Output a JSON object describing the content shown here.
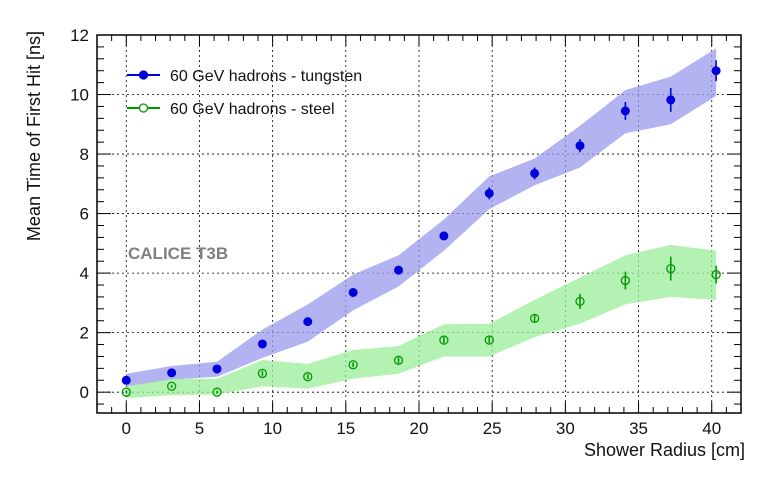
{
  "chart_data": {
    "type": "scatter",
    "xlabel": "Shower Radius [cm]",
    "ylabel": "Mean Time of First Hit [ns]",
    "xlim": [
      -2,
      42
    ],
    "ylim": [
      -0.7,
      12
    ],
    "xticks": [
      0,
      5,
      10,
      15,
      20,
      25,
      30,
      35,
      40
    ],
    "yticks": [
      0,
      2,
      4,
      6,
      8,
      10,
      12
    ],
    "grid": true,
    "legend_position": "top-left",
    "annotation": "CALICE T3B",
    "annotation_color": "#808080",
    "series": [
      {
        "name": "60 GeV hadrons - tungsten",
        "color": "#0000dd",
        "band_color": "#9999ee",
        "marker": "filled-circle",
        "x": [
          0,
          3.1,
          6.2,
          9.3,
          12.4,
          15.5,
          18.6,
          21.7,
          24.8,
          27.9,
          31.0,
          34.1,
          37.2,
          40.3
        ],
        "y": [
          0.4,
          0.65,
          0.78,
          1.62,
          2.37,
          3.35,
          4.1,
          5.25,
          6.68,
          7.35,
          8.28,
          9.45,
          9.82,
          10.8
        ],
        "yerr": [
          0.1,
          0.1,
          0.1,
          0.12,
          0.12,
          0.12,
          0.12,
          0.12,
          0.2,
          0.2,
          0.22,
          0.3,
          0.4,
          0.35
        ],
        "band_low": [
          0.2,
          0.42,
          0.52,
          1.15,
          1.7,
          2.75,
          3.55,
          4.75,
          6.15,
          6.95,
          7.55,
          8.7,
          9.0,
          9.95
        ],
        "band_high": [
          0.62,
          0.88,
          1.02,
          2.1,
          2.95,
          3.95,
          4.6,
          5.8,
          7.25,
          7.85,
          8.95,
          10.15,
          10.6,
          11.55
        ]
      },
      {
        "name": "60 GeV hadrons - steel",
        "color": "#009900",
        "band_color": "#99ee99",
        "marker": "open-circle",
        "x": [
          0,
          3.1,
          6.2,
          9.3,
          12.4,
          15.5,
          18.6,
          21.7,
          24.8,
          27.9,
          31.0,
          34.1,
          37.2,
          40.3
        ],
        "y": [
          0.0,
          0.2,
          0.0,
          0.63,
          0.52,
          0.92,
          1.07,
          1.75,
          1.75,
          2.48,
          3.05,
          3.75,
          4.15,
          3.95
        ],
        "yerr": [
          0.05,
          0.05,
          0.05,
          0.08,
          0.08,
          0.08,
          0.1,
          0.1,
          0.1,
          0.15,
          0.25,
          0.3,
          0.4,
          0.3
        ],
        "band_low": [
          -0.2,
          -0.1,
          -0.08,
          0.2,
          0.12,
          0.45,
          0.62,
          1.2,
          1.2,
          1.85,
          2.3,
          2.95,
          3.2,
          3.1
        ],
        "band_high": [
          0.2,
          0.45,
          0.45,
          1.08,
          0.95,
          1.42,
          1.55,
          2.28,
          2.3,
          3.1,
          3.85,
          4.6,
          4.95,
          4.75
        ]
      }
    ]
  }
}
